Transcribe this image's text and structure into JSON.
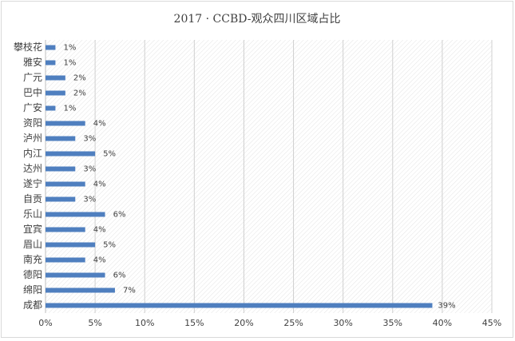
{
  "chart_data": {
    "type": "hbar",
    "title": "2017 · CCBD-观众四川区域占比",
    "categories": [
      "攀枝花",
      "雅安",
      "广元",
      "巴中",
      "广安",
      "资阳",
      "泸州",
      "内江",
      "达州",
      "遂宁",
      "自贡",
      "乐山",
      "宜宾",
      "眉山",
      "南充",
      "德阳",
      "绵阳",
      "成都"
    ],
    "values": [
      1,
      1,
      2,
      2,
      1,
      4,
      3,
      5,
      3,
      4,
      3,
      6,
      4,
      5,
      4,
      6,
      7,
      39
    ],
    "value_labels": [
      "1%",
      "1%",
      "2%",
      "2%",
      "1%",
      "4%",
      "3%",
      "5%",
      "3%",
      "4%",
      "3%",
      "6%",
      "4%",
      "5%",
      "4%",
      "6%",
      "7%",
      "39%"
    ],
    "color": "#4f7fbf",
    "xlim": [
      0,
      45
    ],
    "xticks": [
      {
        "value": 0,
        "label": "0%"
      },
      {
        "value": 5,
        "label": "5%"
      },
      {
        "value": 10,
        "label": "10%"
      },
      {
        "value": 15,
        "label": "15%"
      },
      {
        "value": 20,
        "label": "20%"
      },
      {
        "value": 25,
        "label": "25%"
      },
      {
        "value": 30,
        "label": "30%"
      },
      {
        "value": 35,
        "label": "35%"
      },
      {
        "value": 40,
        "label": "40%"
      },
      {
        "value": 45,
        "label": "45%"
      }
    ],
    "grid": true
  }
}
